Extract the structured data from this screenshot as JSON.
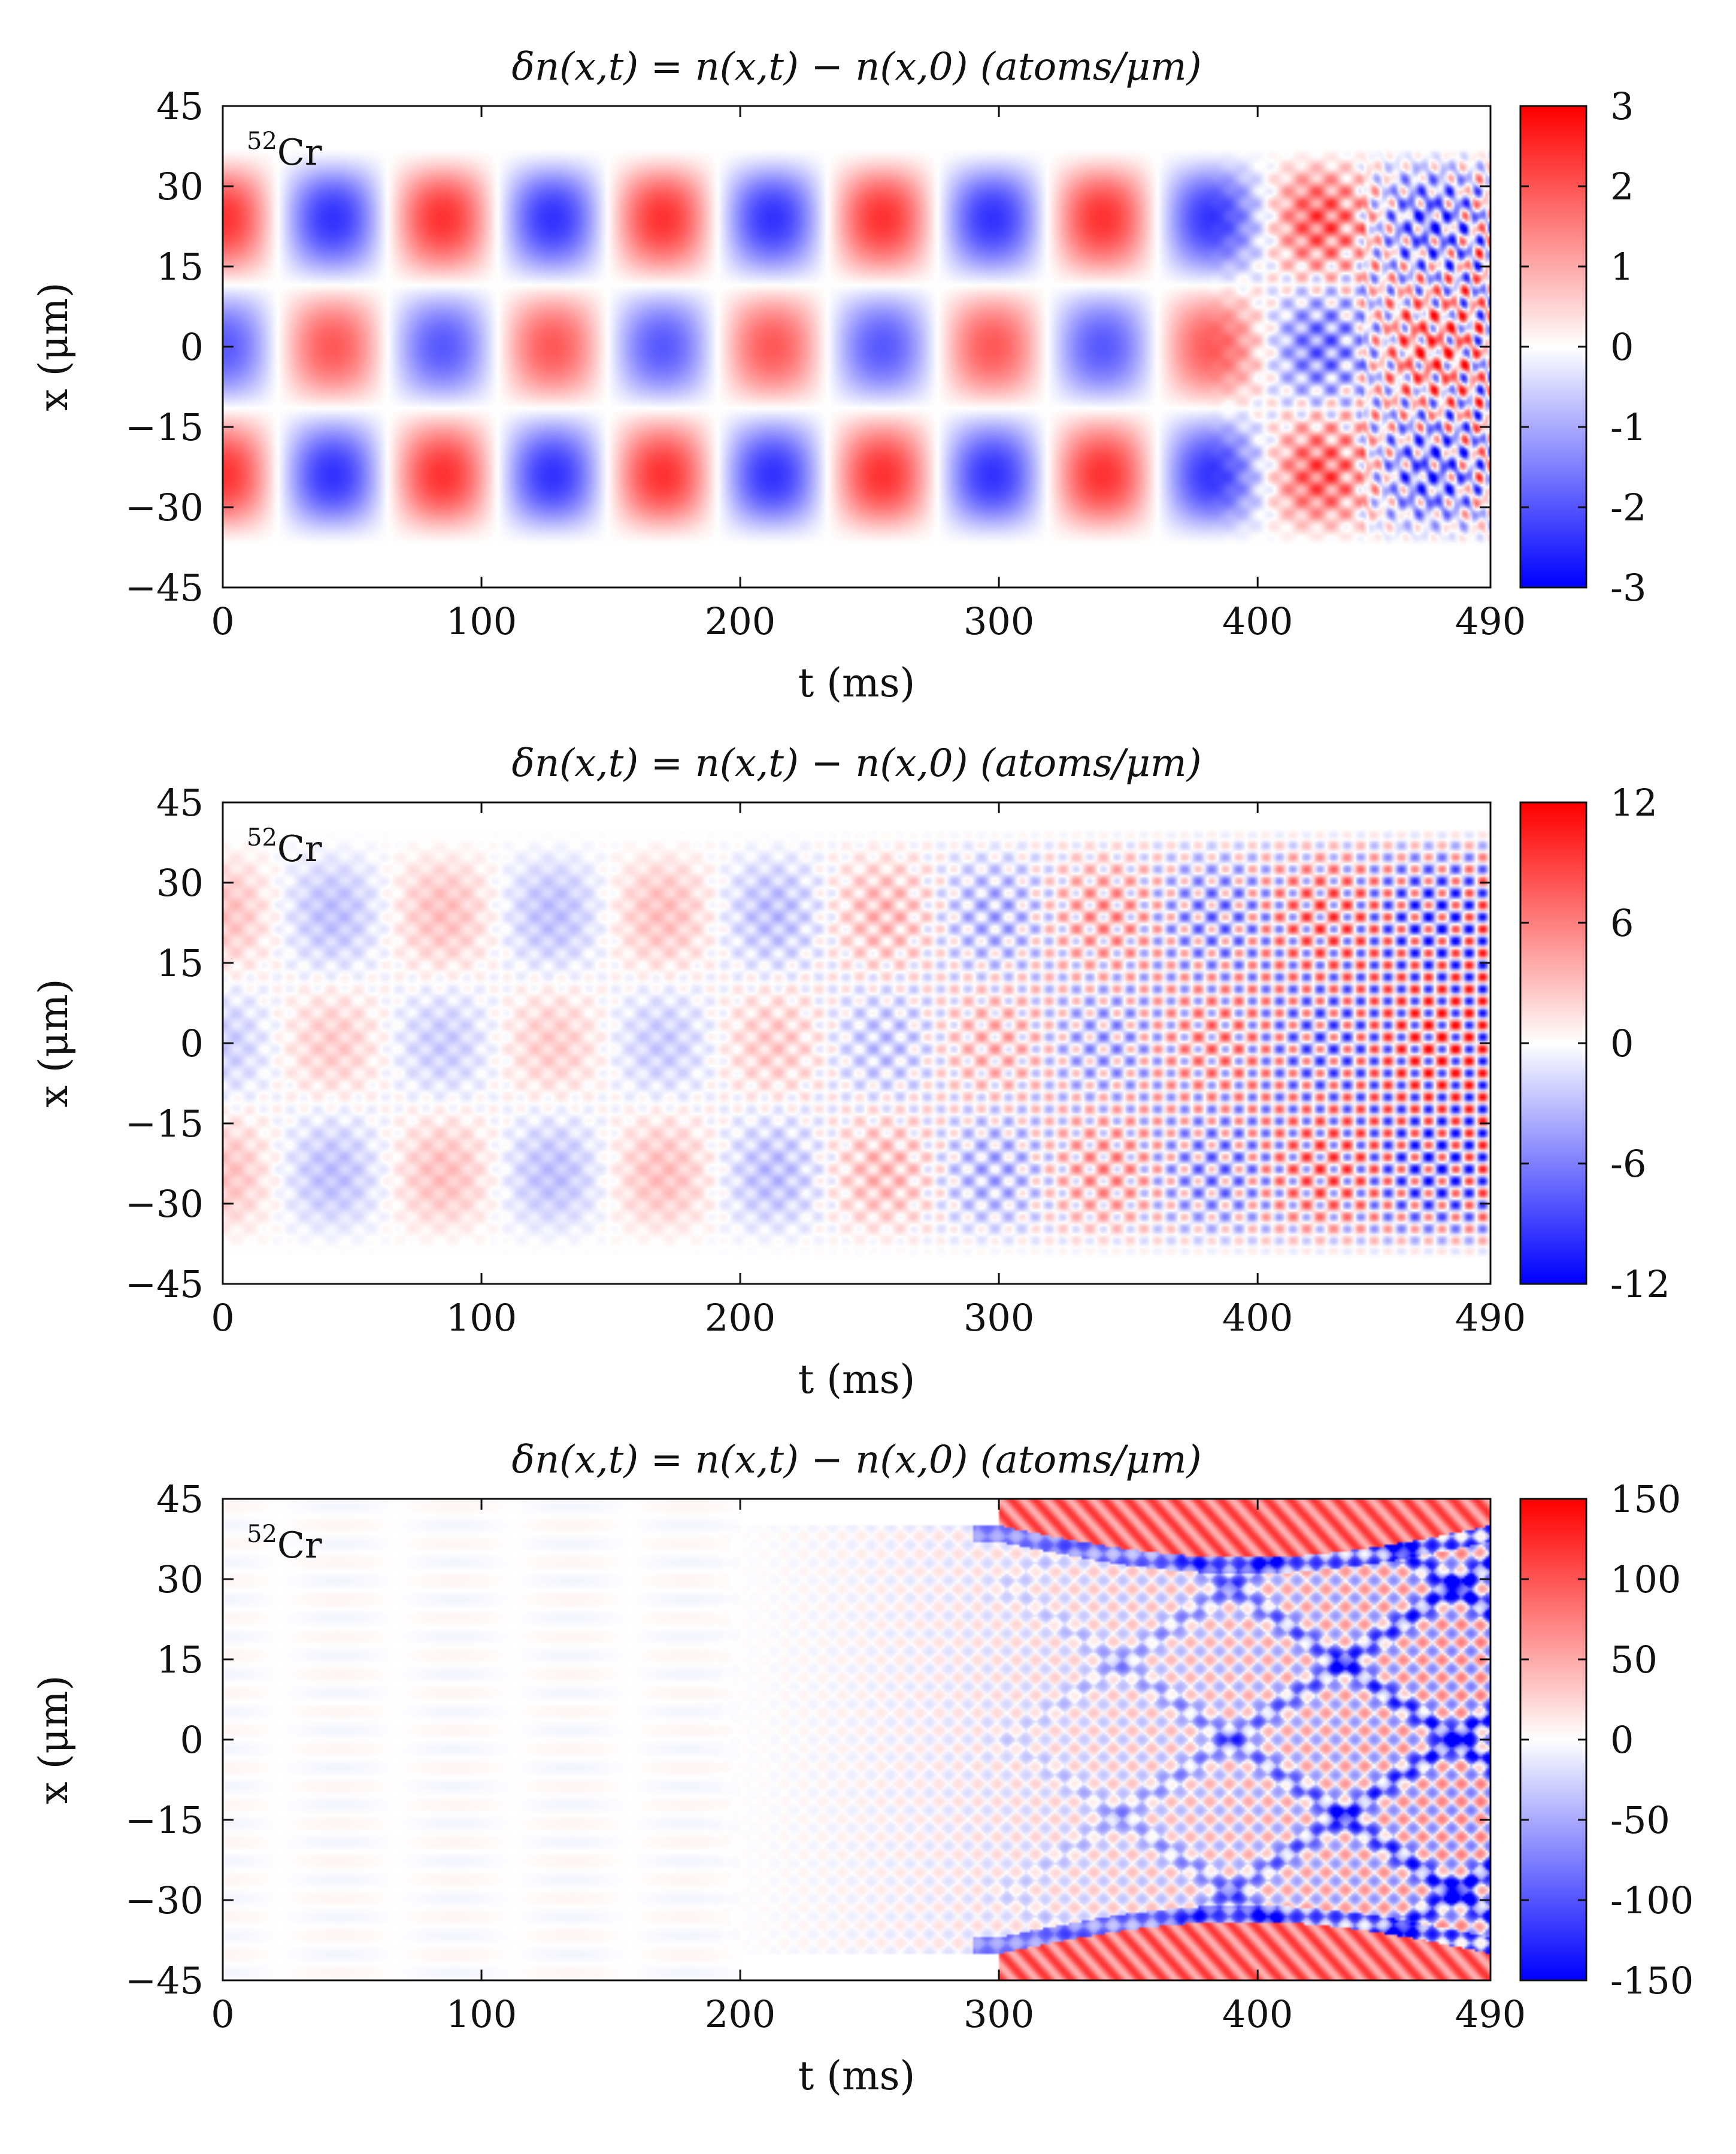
{
  "chart_data": [
    {
      "type": "heatmap",
      "title": "δn(x,t) = n(x,t) − n(x,0)   (atoms/μm)",
      "xlabel": "t (ms)",
      "ylabel": "x (μm)",
      "isotope_label": "52Cr",
      "isotope_mass": "52",
      "isotope_element": "Cr",
      "xlim": [
        0,
        490
      ],
      "ylim": [
        -45,
        45
      ],
      "xticks": [
        0,
        100,
        200,
        300,
        400,
        490
      ],
      "xtick_labels": [
        "0",
        "100",
        "200",
        "300",
        "400",
        "490"
      ],
      "yticks": [
        45,
        30,
        15,
        0,
        -15,
        -30,
        -45
      ],
      "ytick_labels": [
        "45",
        "30",
        "15",
        "0",
        "−15",
        "−30",
        "−45"
      ],
      "colorbar": {
        "range": [
          -3,
          3
        ],
        "ticks": [
          3,
          2,
          1,
          0,
          -1,
          -2,
          -3
        ],
        "tick_labels": [
          "3",
          "2",
          "1",
          "0",
          "-1",
          "-2",
          "-3"
        ],
        "colors": [
          "#0000ff",
          "#ffffff",
          "#ff0000"
        ]
      },
      "pattern": "breathing",
      "amplitude_max": 2.5,
      "period_ms": 85,
      "outer_edge_um": 37
    },
    {
      "type": "heatmap",
      "title": "δn(x,t) = n(x,t) − n(x,0)   (atoms/μm)",
      "xlabel": "t (ms)",
      "ylabel": "x (μm)",
      "isotope_label": "52Cr",
      "isotope_mass": "52",
      "isotope_element": "Cr",
      "xlim": [
        0,
        490
      ],
      "ylim": [
        -45,
        45
      ],
      "xticks": [
        0,
        100,
        200,
        300,
        400,
        490
      ],
      "xtick_labels": [
        "0",
        "100",
        "200",
        "300",
        "400",
        "490"
      ],
      "yticks": [
        45,
        30,
        15,
        0,
        -15,
        -30,
        -45
      ],
      "ytick_labels": [
        "45",
        "30",
        "15",
        "0",
        "−15",
        "−30",
        "−45"
      ],
      "colorbar": {
        "range": [
          -12,
          12
        ],
        "ticks": [
          12,
          6,
          0,
          -6,
          -12
        ],
        "tick_labels": [
          "12",
          "6",
          "0",
          "-6",
          "-12"
        ],
        "colors": [
          "#0000ff",
          "#ffffff",
          "#ff0000"
        ]
      },
      "pattern": "breathing_to_ripples",
      "amplitude_max": 10,
      "period_ms": 85,
      "outer_edge_um": 40
    },
    {
      "type": "heatmap",
      "title": "δn(x,t) = n(x,t) − n(x,0)   (atoms/μm)",
      "xlabel": "t (ms)",
      "ylabel": "x (μm)",
      "isotope_label": "52Cr",
      "isotope_mass": "52",
      "isotope_element": "Cr",
      "xlim": [
        0,
        490
      ],
      "ylim": [
        -45,
        45
      ],
      "xticks": [
        0,
        100,
        200,
        300,
        400,
        490
      ],
      "xtick_labels": [
        "0",
        "100",
        "200",
        "300",
        "400",
        "490"
      ],
      "yticks": [
        45,
        30,
        15,
        0,
        -15,
        -30,
        -45
      ],
      "ytick_labels": [
        "45",
        "30",
        "15",
        "0",
        "−15",
        "−30",
        "−45"
      ],
      "colorbar": {
        "range": [
          -150,
          150
        ],
        "ticks": [
          150,
          100,
          50,
          0,
          -50,
          -100,
          -150
        ],
        "tick_labels": [
          "150",
          "100",
          "50",
          "0",
          "-50",
          "-100",
          "-150"
        ],
        "colors": [
          "#0000ff",
          "#ffffff",
          "#ff0000"
        ]
      },
      "pattern": "crisscross_instability",
      "amplitude_max": 120,
      "onset_ms": 200,
      "outer_edge_um": 40
    }
  ]
}
